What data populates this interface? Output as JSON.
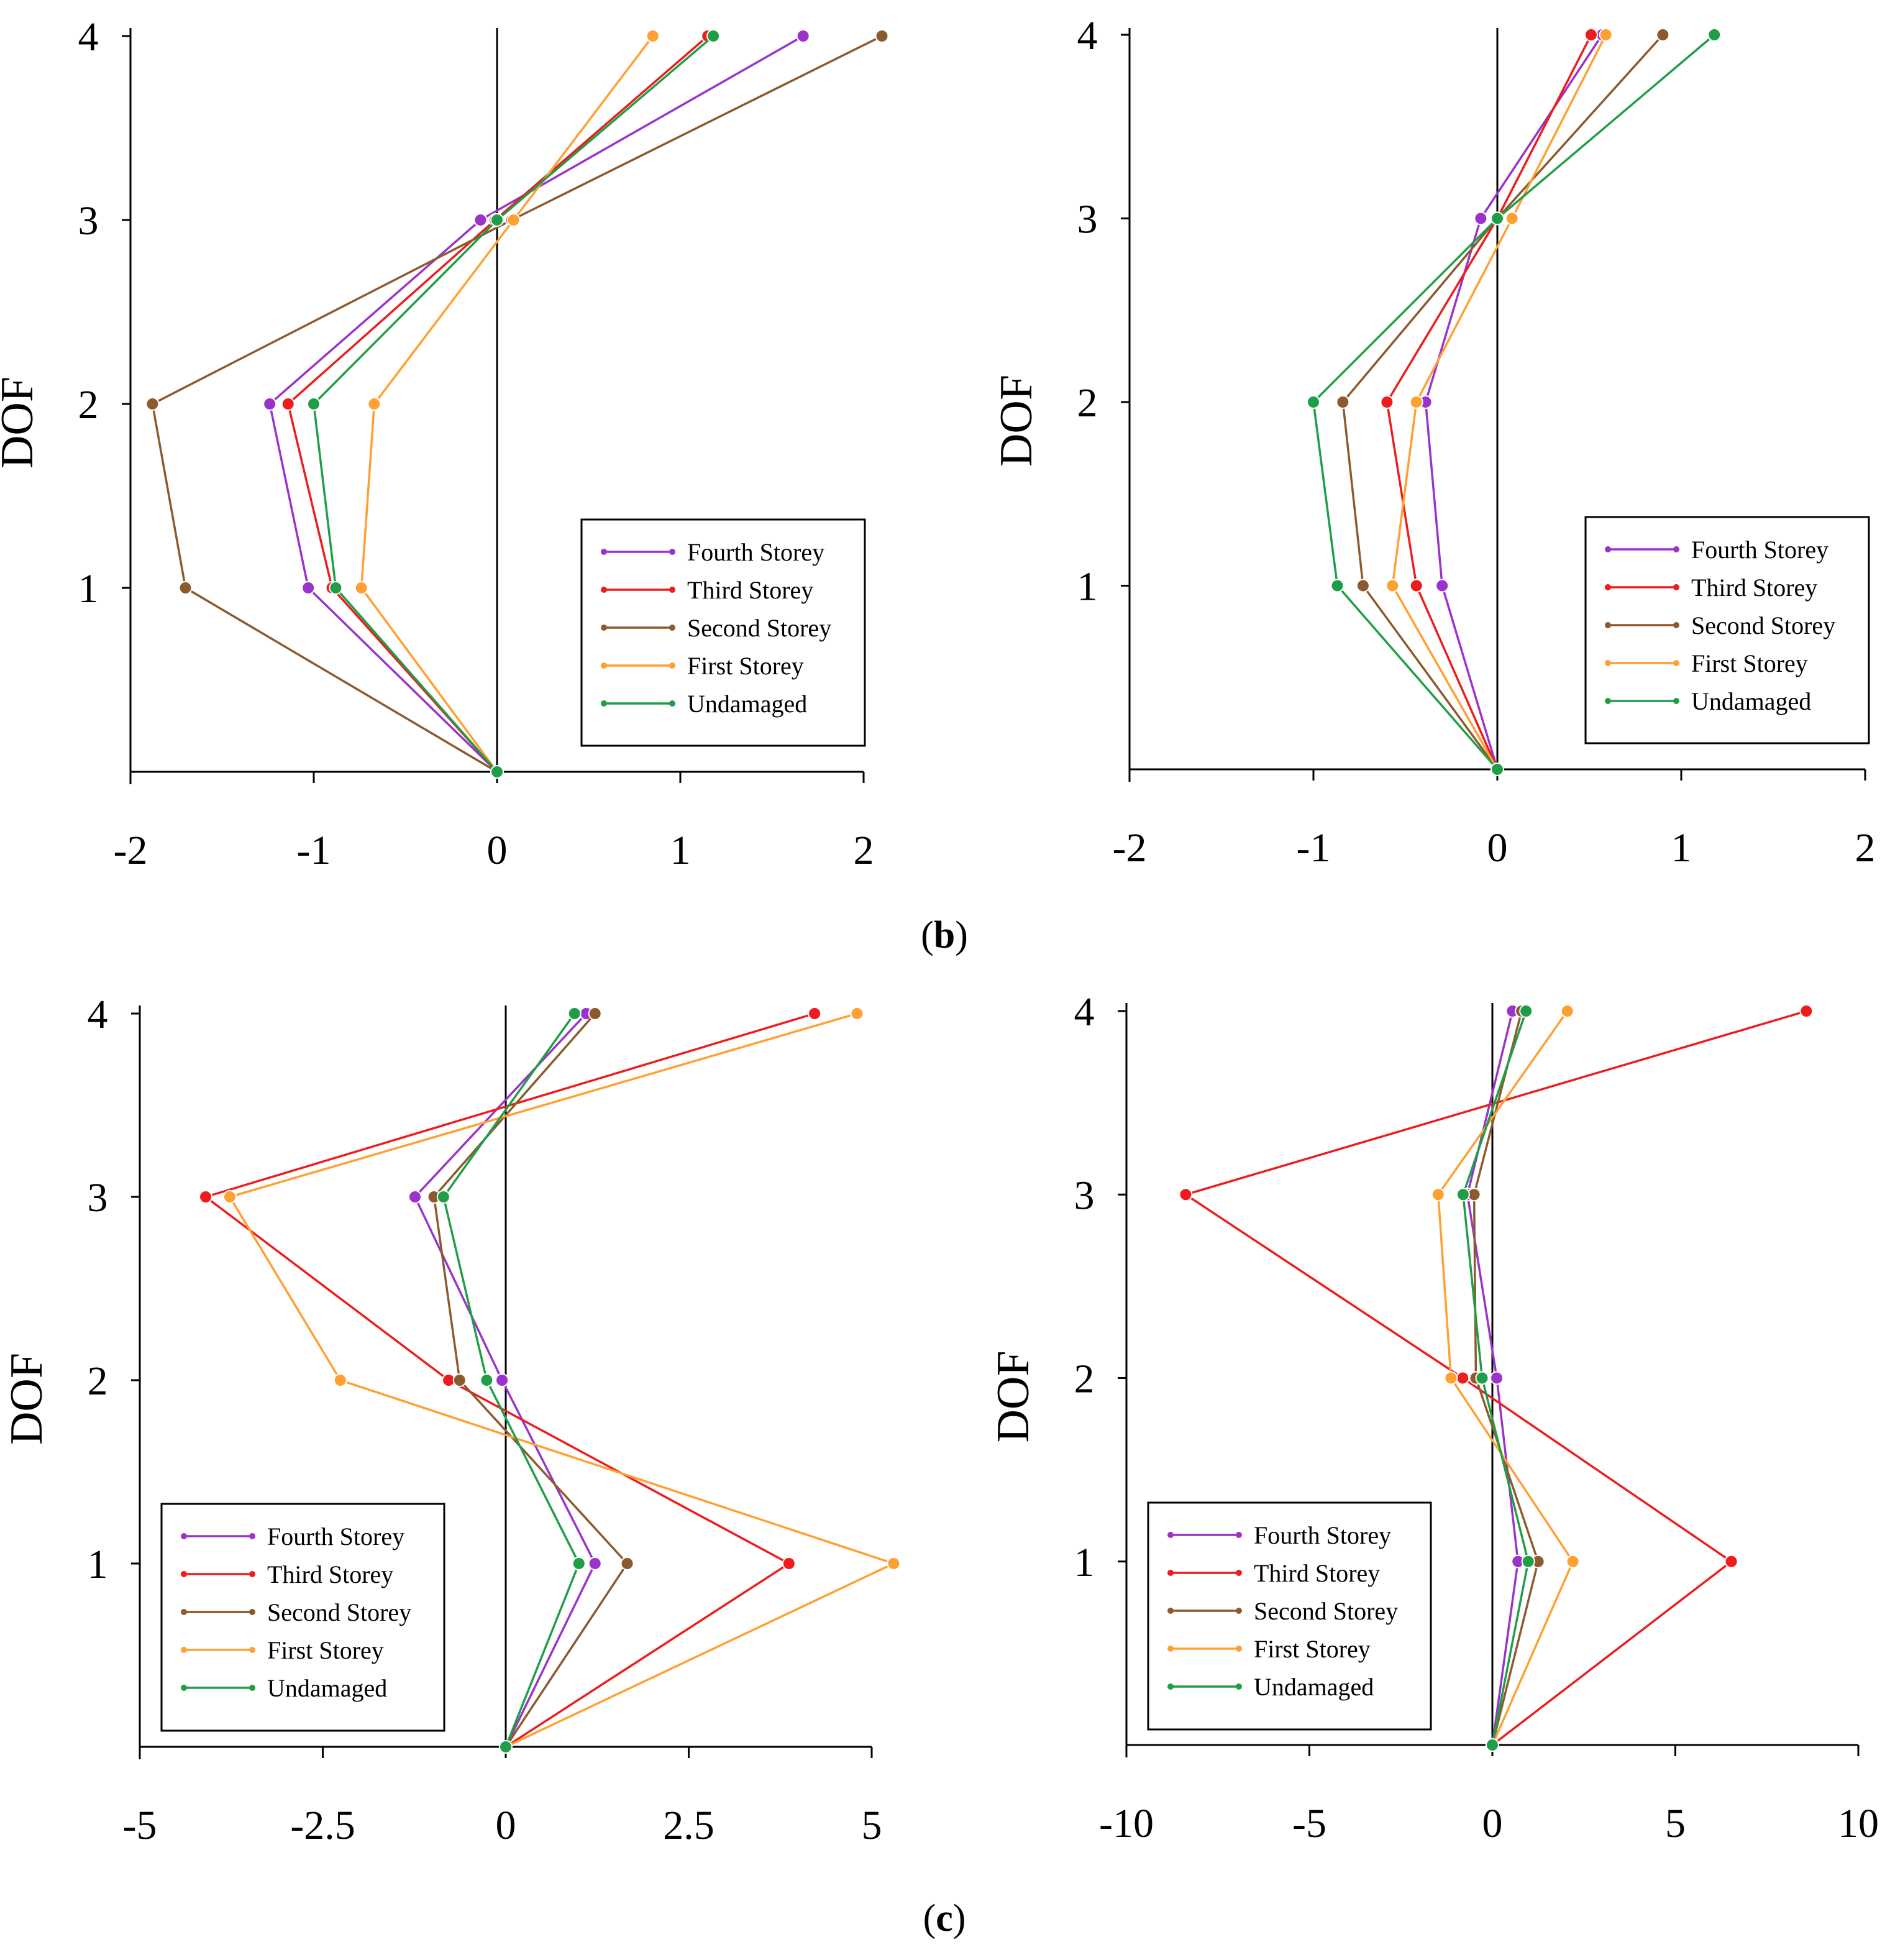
{
  "panel_labels": [
    {
      "open": "(",
      "letter": "b",
      "close": ")"
    },
    {
      "open": "(",
      "letter": "c",
      "close": ")"
    }
  ],
  "colors": {
    "fourth": "#9933cc",
    "third": "#ee1c1c",
    "second": "#8c5a2c",
    "first": "#ffa033",
    "undamaged": "#1f9e48",
    "axis": "#000000",
    "legend_border": "#000000"
  },
  "chart_data": [
    {
      "type": "line",
      "title": "",
      "xlabel": "",
      "ylabel": "DOF",
      "xlim": [
        -2,
        2
      ],
      "xticks": [
        "-2",
        "-1",
        "0",
        "1",
        "2"
      ],
      "xtick_values": [
        -2,
        -1,
        0,
        1,
        2
      ],
      "y_dofs": [
        0,
        1,
        2,
        3,
        4
      ],
      "yticks": [
        "1",
        "2",
        "3",
        "4"
      ],
      "legend_position": "bottom-right",
      "series": [
        {
          "key": "fourth",
          "name": "Fourth Storey",
          "values": [
            0,
            -1.03,
            -1.24,
            -0.09,
            1.67
          ]
        },
        {
          "key": "third",
          "name": "Third Storey",
          "values": [
            0,
            -0.9,
            -1.14,
            -0.01,
            1.15
          ]
        },
        {
          "key": "second",
          "name": "Second Storey",
          "values": [
            0,
            -1.7,
            -1.88,
            0.08,
            2.1
          ]
        },
        {
          "key": "first",
          "name": "First Storey",
          "values": [
            0,
            -0.74,
            -0.67,
            0.09,
            0.85
          ]
        },
        {
          "key": "undamaged",
          "name": "Undamaged",
          "values": [
            0,
            -0.88,
            -1.0,
            0.0,
            1.18
          ]
        }
      ]
    },
    {
      "type": "line",
      "title": "",
      "xlabel": "",
      "ylabel": "DOF",
      "xlim": [
        -2,
        2
      ],
      "xticks": [
        "-2",
        "-1",
        "0",
        "1",
        "2"
      ],
      "xtick_values": [
        -2,
        -1,
        0,
        1,
        2
      ],
      "y_dofs": [
        0,
        1,
        2,
        3,
        4
      ],
      "yticks": [
        "1",
        "2",
        "3",
        "4"
      ],
      "legend_position": "bottom-right",
      "series": [
        {
          "key": "fourth",
          "name": "Fourth Storey",
          "values": [
            0,
            -0.3,
            -0.39,
            -0.09,
            0.57
          ]
        },
        {
          "key": "third",
          "name": "Third Storey",
          "values": [
            0,
            -0.44,
            -0.6,
            0.0,
            0.51
          ]
        },
        {
          "key": "second",
          "name": "Second Storey",
          "values": [
            0,
            -0.73,
            -0.84,
            0.0,
            0.9
          ]
        },
        {
          "key": "first",
          "name": "First Storey",
          "values": [
            0,
            -0.57,
            -0.44,
            0.08,
            0.59
          ]
        },
        {
          "key": "undamaged",
          "name": "Undamaged",
          "values": [
            0,
            -0.87,
            -1.0,
            0.0,
            1.18
          ]
        }
      ]
    },
    {
      "type": "line",
      "title": "",
      "xlabel": "",
      "ylabel": "DOF",
      "xlim": [
        -5,
        5
      ],
      "xticks": [
        "-5",
        "-2.5",
        "0",
        "2.5",
        "5"
      ],
      "xtick_values": [
        -5,
        -2.5,
        0,
        2.5,
        5
      ],
      "y_dofs": [
        0,
        1,
        2,
        3,
        4
      ],
      "yticks": [
        "1",
        "2",
        "3",
        "4"
      ],
      "legend_position": "bottom-left",
      "series": [
        {
          "key": "fourth",
          "name": "Fourth Storey",
          "values": [
            0,
            1.22,
            -0.05,
            -1.24,
            1.1
          ]
        },
        {
          "key": "third",
          "name": "Third Storey",
          "values": [
            0,
            3.87,
            -0.78,
            -4.1,
            4.22
          ]
        },
        {
          "key": "second",
          "name": "Second Storey",
          "values": [
            0,
            1.66,
            -0.63,
            -0.98,
            1.22
          ]
        },
        {
          "key": "first",
          "name": "First Storey",
          "values": [
            0,
            5.3,
            -2.26,
            -3.77,
            4.8
          ]
        },
        {
          "key": "undamaged",
          "name": "Undamaged",
          "values": [
            0,
            1.0,
            -0.26,
            -0.85,
            0.94
          ]
        }
      ]
    },
    {
      "type": "line",
      "title": "",
      "xlabel": "",
      "ylabel": "DOF",
      "xlim": [
        -10,
        10
      ],
      "xticks": [
        "-10",
        "-5",
        "0",
        "5",
        "10"
      ],
      "xtick_values": [
        -10,
        -5,
        0,
        5,
        10
      ],
      "y_dofs": [
        0,
        1,
        2,
        3,
        4
      ],
      "yticks": [
        "1",
        "2",
        "3",
        "4"
      ],
      "legend_position": "bottom-left",
      "series": [
        {
          "key": "fourth",
          "name": "Fourth Storey",
          "values": [
            0,
            0.7,
            0.12,
            -0.68,
            0.55
          ]
        },
        {
          "key": "third",
          "name": "Third Storey",
          "values": [
            0,
            6.53,
            -0.81,
            -8.38,
            8.58
          ]
        },
        {
          "key": "second",
          "name": "Second Storey",
          "values": [
            0,
            1.25,
            -0.45,
            -0.5,
            0.8
          ]
        },
        {
          "key": "first",
          "name": "First Storey",
          "values": [
            0,
            2.2,
            -1.13,
            -1.48,
            2.05
          ]
        },
        {
          "key": "undamaged",
          "name": "Undamaged",
          "values": [
            0,
            0.98,
            -0.28,
            -0.8,
            0.92
          ]
        }
      ]
    }
  ]
}
